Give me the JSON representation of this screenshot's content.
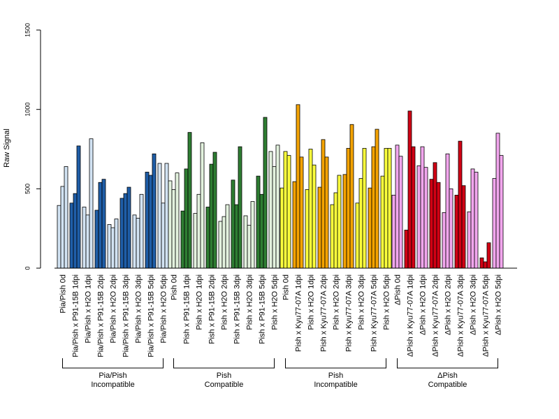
{
  "chart_data": {
    "type": "bar",
    "title": "",
    "xlabel": "",
    "ylabel": "Raw Signal",
    "ylim": [
      0,
      1500
    ],
    "yticks": [
      0,
      500,
      1000,
      1500
    ],
    "grid": false,
    "legend": "none",
    "colors": {
      "Pia/Pish Incompatible": {
        "light": "#d2e3f3",
        "dark": "#1f5ea8"
      },
      "Pish Compatible": {
        "light": "#e3f2de",
        "dark": "#2e7d32"
      },
      "Pish Incompatible": {
        "light": "#fbff3c",
        "dark": "#f4a300"
      },
      "ΔPish Compatible": {
        "light": "#f2a6ee",
        "dark": "#d10014"
      }
    },
    "categories": [
      "Pia/Pish 0d",
      "Pia/Pish x P91-15B 1dpi",
      "Pia/Pish x H2O 1dpi",
      "Pia/Pish x P91-15B 2dpi",
      "Pia/Pish x H2O 2dpi",
      "Pia/Pish x P91-15B 3dpi",
      "Pia/Pish x H2O 3dpi",
      "Pia/Pish x P91-15B 5dpi",
      "Pia/Pish x H2O 5dpi",
      "Pish 0d",
      "Pish x P91-15B 1dpi",
      "Pish x H2O 1dpi",
      "Pish x P91-15B 2dpi",
      "Pish x H2O 2dpi",
      "Pish x P91-15B 3dpi",
      "Pish x H2O 3dpi",
      "Pish x P91-15B 5dpi",
      "Pish x H2O 5dpi",
      "Pish 0d",
      "Pish x Kyu77-07A 1dpi",
      "Pish x H2O 1dpi",
      "Pish x Kyu77-07A 2dpi",
      "Pish x H2O 2dpi",
      "Pish x Kyu77-07A 3dpi",
      "Pish x H2O 3dpi",
      "Pish x Kyu77-07A 5dpi",
      "Pish x H2O 5dpi",
      "ΔPish 0d",
      "ΔPish x Kyu77-07A 1dpi",
      "ΔPish x H2O 1dpi",
      "ΔPish x Kyu77-07A 2dpi",
      "ΔPish x H2O 2dpi",
      "ΔPish x Kyu77-07A 3dpi",
      "ΔPish x H2O 3dpi",
      "ΔPish x Kyu77-07A 5dpi",
      "ΔPish x H2O 5dpi"
    ],
    "categories_group": [
      "Pia/Pish Incompatible",
      "Pia/Pish Incompatible",
      "Pia/Pish Incompatible",
      "Pia/Pish Incompatible",
      "Pia/Pish Incompatible",
      "Pia/Pish Incompatible",
      "Pia/Pish Incompatible",
      "Pia/Pish Incompatible",
      "Pia/Pish Incompatible",
      "Pish Compatible",
      "Pish Compatible",
      "Pish Compatible",
      "Pish Compatible",
      "Pish Compatible",
      "Pish Compatible",
      "Pish Compatible",
      "Pish Compatible",
      "Pish Compatible",
      "Pish Incompatible",
      "Pish Incompatible",
      "Pish Incompatible",
      "Pish Incompatible",
      "Pish Incompatible",
      "Pish Incompatible",
      "Pish Incompatible",
      "Pish Incompatible",
      "Pish Incompatible",
      "ΔPish Compatible",
      "ΔPish Compatible",
      "ΔPish Compatible",
      "ΔPish Compatible",
      "ΔPish Compatible",
      "ΔPish Compatible",
      "ΔPish Compatible",
      "ΔPish Compatible",
      "ΔPish Compatible"
    ],
    "categories_shade": [
      "light",
      "dark",
      "light",
      "dark",
      "light",
      "dark",
      "light",
      "dark",
      "light",
      "light",
      "dark",
      "light",
      "dark",
      "light",
      "dark",
      "light",
      "dark",
      "light",
      "light",
      "dark",
      "light",
      "dark",
      "light",
      "dark",
      "light",
      "dark",
      "light",
      "light",
      "dark",
      "light",
      "dark",
      "light",
      "dark",
      "light",
      "dark",
      "light"
    ],
    "values": [
      [
        395,
        515,
        640
      ],
      [
        410,
        470,
        770
      ],
      [
        385,
        335,
        815
      ],
      [
        365,
        540,
        560
      ],
      [
        275,
        255,
        310
      ],
      [
        440,
        470,
        510
      ],
      [
        335,
        315,
        465
      ],
      [
        605,
        585,
        720
      ],
      [
        660,
        410,
        660
      ],
      [
        550,
        495,
        600
      ],
      [
        360,
        625,
        855
      ],
      [
        345,
        465,
        790
      ],
      [
        385,
        655,
        730
      ],
      [
        295,
        325,
        400
      ],
      [
        555,
        400,
        765
      ],
      [
        330,
        270,
        420
      ],
      [
        580,
        465,
        950
      ],
      [
        735,
        640,
        775
      ],
      [
        505,
        735,
        710
      ],
      [
        545,
        1030,
        700
      ],
      [
        495,
        750,
        650
      ],
      [
        510,
        810,
        700
      ],
      [
        400,
        475,
        585
      ],
      [
        590,
        755,
        905
      ],
      [
        410,
        565,
        755
      ],
      [
        505,
        765,
        875
      ],
      [
        580,
        755,
        755
      ],
      [
        460,
        775,
        705
      ],
      [
        240,
        990,
        765
      ],
      [
        645,
        765,
        635
      ],
      [
        560,
        665,
        540
      ],
      [
        350,
        720,
        500
      ],
      [
        460,
        800,
        520
      ],
      [
        355,
        625,
        605
      ],
      [
        65,
        40,
        160
      ],
      [
        565,
        850,
        710
      ]
    ],
    "groups": [
      {
        "label_line1": "Pia/Pish",
        "label_line2": "Incompatible"
      },
      {
        "label_line1": "Pish",
        "label_line2": "Compatible"
      },
      {
        "label_line1": "Pish",
        "label_line2": "Incompatible"
      },
      {
        "label_line1": "ΔPish",
        "label_line2": "Compatible"
      }
    ]
  }
}
